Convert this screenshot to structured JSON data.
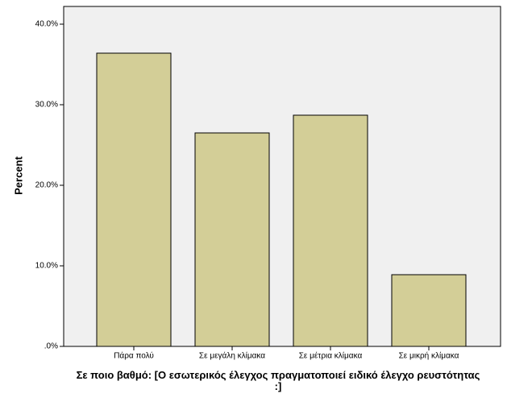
{
  "chart_data": {
    "type": "bar",
    "x_label": "Σε ποιο βαθμό:  [Ο εσωτερικός έλεγχος πραγματοποιεί ειδικό έλεγχο ρευστότητας :]",
    "y_label": "Percent",
    "categories": [
      "Πάρα πολύ",
      "Σε μεγάλη κλίμακα",
      "Σε μέτρια κλίμακα",
      "Σε μικρή κλίμακα"
    ],
    "values": [
      36.4,
      26.5,
      28.7,
      8.9
    ],
    "color": "#d3ce97",
    "ylim": [
      0,
      42.2
    ],
    "yticks": [
      {
        "value": 0,
        "label": ".0%"
      },
      {
        "value": 10,
        "label": "10.0%"
      },
      {
        "value": 20,
        "label": "20.0%"
      },
      {
        "value": 30,
        "label": "30.0%"
      },
      {
        "value": 40,
        "label": "40.0%"
      }
    ],
    "grid": false
  }
}
